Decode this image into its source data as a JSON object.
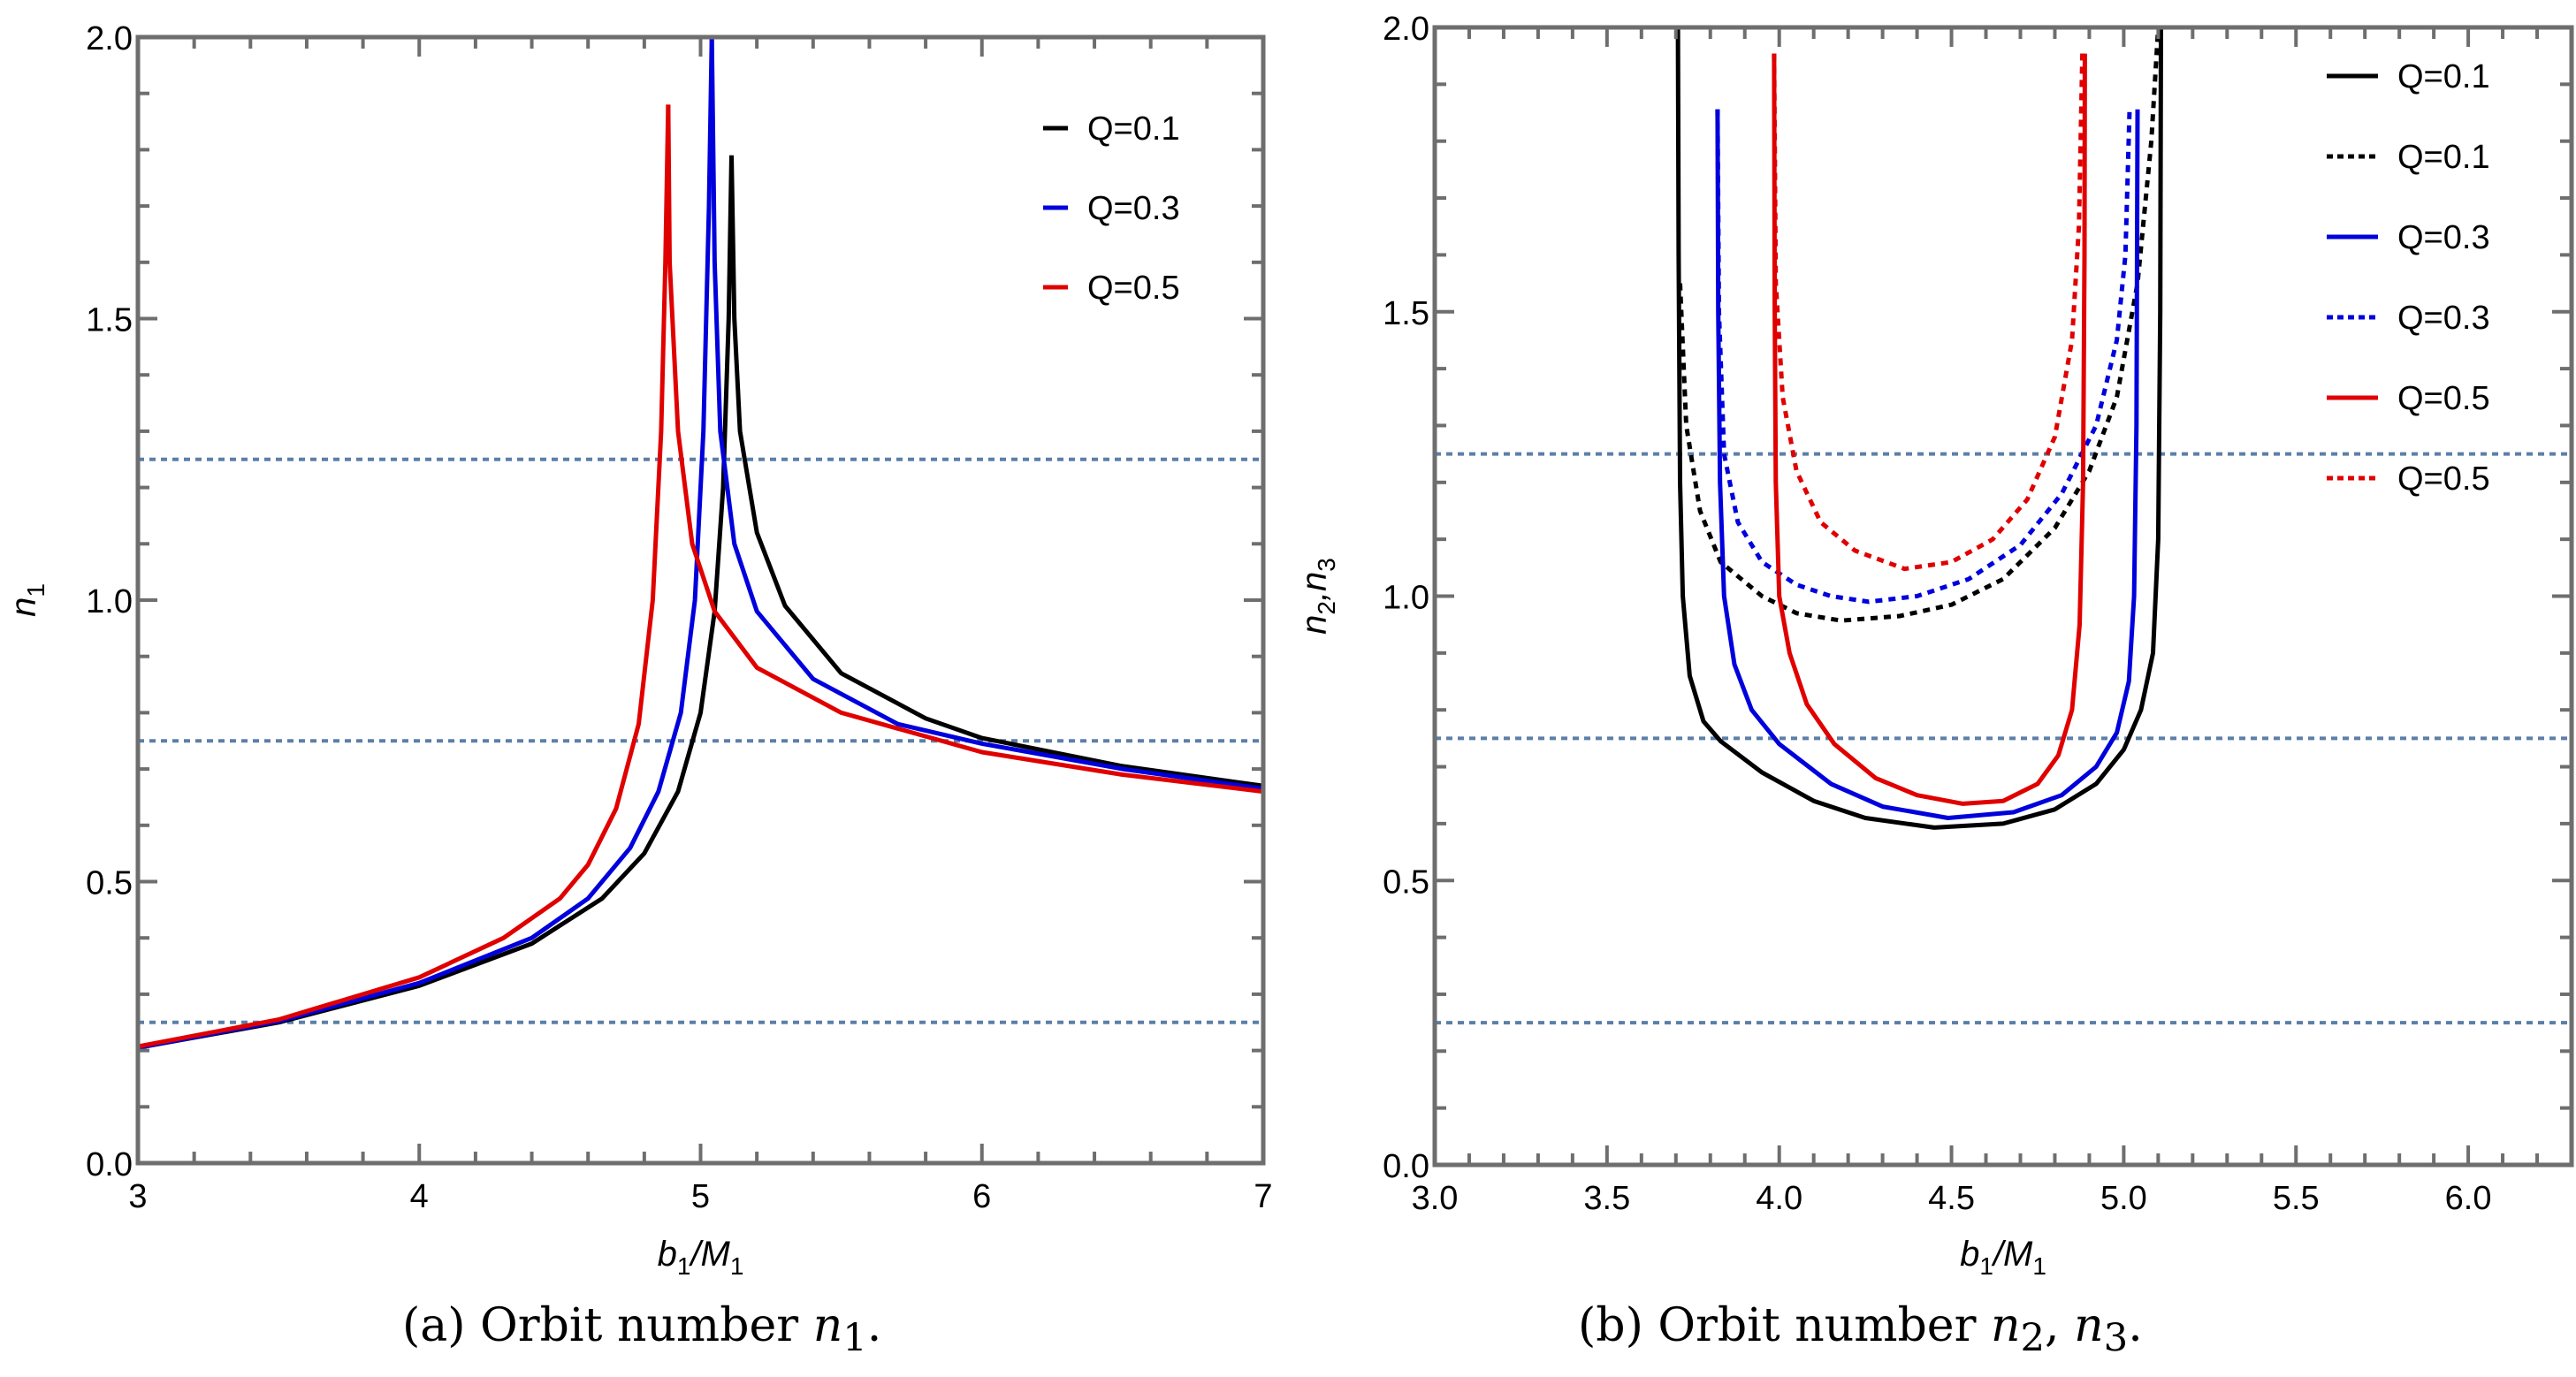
{
  "chart_data": [
    {
      "id": "a",
      "type": "line",
      "caption": "(a) Orbit number n₁.",
      "caption_parts": {
        "prefix": "(a) Orbit number ",
        "var": "n",
        "sub": "1",
        "suffix": "."
      },
      "xlabel": {
        "main": "b",
        "sub1": "1",
        "mid": "/M",
        "sub2": "1"
      },
      "ylabel": {
        "main": "n",
        "sub": "1"
      },
      "xlim": [
        3,
        7
      ],
      "ylim": [
        0,
        2
      ],
      "xticks": [
        3,
        4,
        5,
        6,
        7
      ],
      "xtick_labels": [
        "3",
        "4",
        "5",
        "6",
        "7"
      ],
      "x_minor_step": 0.2,
      "yticks": [
        0,
        0.5,
        1.0,
        1.5,
        2.0
      ],
      "ytick_labels": [
        "0.0",
        "0.5",
        "1.0",
        "1.5",
        "2.0"
      ],
      "y_minor_step": 0.1,
      "grid": false,
      "legend_position": "top-right",
      "reference_lines": [
        0.25,
        0.75,
        1.25
      ],
      "reference_color": "#5b7fa8",
      "series": [
        {
          "name": "Q=0.1",
          "color": "#000000",
          "style": "solid",
          "segments": [
            [
              [
                3,
                0.205
              ],
              [
                3.5,
                0.25
              ],
              [
                4,
                0.315
              ],
              [
                4.4,
                0.39
              ],
              [
                4.65,
                0.47
              ],
              [
                4.8,
                0.55
              ],
              [
                4.92,
                0.66
              ],
              [
                5.0,
                0.8
              ],
              [
                5.05,
                0.98
              ],
              [
                5.08,
                1.2
              ],
              [
                5.1,
                1.5
              ],
              [
                5.11,
                1.79
              ]
            ],
            [
              [
                5.11,
                1.79
              ],
              [
                5.12,
                1.5
              ],
              [
                5.14,
                1.3
              ],
              [
                5.2,
                1.12
              ],
              [
                5.3,
                0.99
              ],
              [
                5.5,
                0.87
              ],
              [
                5.8,
                0.79
              ],
              [
                6,
                0.755
              ],
              [
                6.5,
                0.705
              ],
              [
                7,
                0.67
              ]
            ]
          ]
        },
        {
          "name": "Q=0.3",
          "color": "#0000dd",
          "style": "solid",
          "segments": [
            [
              [
                3,
                0.205
              ],
              [
                3.5,
                0.252
              ],
              [
                4,
                0.32
              ],
              [
                4.4,
                0.4
              ],
              [
                4.6,
                0.47
              ],
              [
                4.75,
                0.56
              ],
              [
                4.85,
                0.66
              ],
              [
                4.93,
                0.8
              ],
              [
                4.98,
                1.0
              ],
              [
                5.01,
                1.3
              ],
              [
                5.03,
                1.7
              ],
              [
                5.04,
                2.0
              ]
            ],
            [
              [
                5.04,
                2.0
              ],
              [
                5.05,
                1.6
              ],
              [
                5.07,
                1.3
              ],
              [
                5.12,
                1.1
              ],
              [
                5.2,
                0.98
              ],
              [
                5.4,
                0.86
              ],
              [
                5.7,
                0.78
              ],
              [
                6,
                0.745
              ],
              [
                6.5,
                0.7
              ],
              [
                7,
                0.665
              ]
            ]
          ]
        },
        {
          "name": "Q=0.5",
          "color": "#e00000",
          "style": "solid",
          "segments": [
            [
              [
                3,
                0.207
              ],
              [
                3.5,
                0.255
              ],
              [
                4,
                0.33
              ],
              [
                4.3,
                0.4
              ],
              [
                4.5,
                0.47
              ],
              [
                4.6,
                0.53
              ],
              [
                4.7,
                0.63
              ],
              [
                4.78,
                0.78
              ],
              [
                4.83,
                1.0
              ],
              [
                4.86,
                1.3
              ],
              [
                4.875,
                1.6
              ],
              [
                4.885,
                1.88
              ]
            ],
            [
              [
                4.885,
                1.88
              ],
              [
                4.89,
                1.6
              ],
              [
                4.92,
                1.3
              ],
              [
                4.97,
                1.1
              ],
              [
                5.05,
                0.98
              ],
              [
                5.2,
                0.88
              ],
              [
                5.5,
                0.8
              ],
              [
                6,
                0.73
              ],
              [
                6.5,
                0.69
              ],
              [
                7,
                0.66
              ]
            ]
          ]
        }
      ]
    },
    {
      "id": "b",
      "type": "line",
      "caption": "(b) Orbit number n₂, n₃.",
      "caption_parts": {
        "prefix": "(b) Orbit number ",
        "var": "n",
        "sub": "2",
        "mid": ", ",
        "var2": "n",
        "sub2": "3",
        "suffix": "."
      },
      "xlabel": {
        "main": "b",
        "sub1": "1",
        "mid": "/M",
        "sub2": "1"
      },
      "ylabel": {
        "main": "n",
        "sub": "2",
        "mid": ",n",
        "sub2": "3"
      },
      "xlim": [
        3.0,
        6.3
      ],
      "ylim": [
        0,
        2
      ],
      "xticks": [
        3.0,
        3.5,
        4.0,
        4.5,
        5.0,
        5.5,
        6.0
      ],
      "xtick_labels": [
        "3.0",
        "3.5",
        "4.0",
        "4.5",
        "5.0",
        "5.5",
        "6.0"
      ],
      "x_minor_step": 0.1,
      "yticks": [
        0,
        0.5,
        1.0,
        1.5,
        2.0
      ],
      "ytick_labels": [
        "0.0",
        "0.5",
        "1.0",
        "1.5",
        "2.0"
      ],
      "y_minor_step": 0.1,
      "grid": false,
      "legend_position": "top-right",
      "reference_lines": [
        0.25,
        0.75,
        1.25
      ],
      "reference_color": "#5b7fa8",
      "series": [
        {
          "name": "Q=0.1",
          "color": "#000000",
          "style": "solid",
          "segments": [
            [
              [
                3.706,
                2.0
              ],
              [
                3.708,
                1.6
              ],
              [
                3.712,
                1.2
              ],
              [
                3.72,
                1.0
              ],
              [
                3.74,
                0.86
              ],
              [
                3.78,
                0.78
              ],
              [
                3.83,
                0.745
              ],
              [
                3.95,
                0.69
              ],
              [
                4.1,
                0.64
              ],
              [
                4.25,
                0.61
              ],
              [
                4.45,
                0.593
              ],
              [
                4.65,
                0.6
              ],
              [
                4.8,
                0.625
              ],
              [
                4.92,
                0.67
              ],
              [
                5.0,
                0.73
              ],
              [
                5.05,
                0.8
              ],
              [
                5.085,
                0.9
              ],
              [
                5.1,
                1.1
              ],
              [
                5.106,
                1.5
              ],
              [
                5.108,
                2.0
              ]
            ]
          ]
        },
        {
          "name": "Q=0.1",
          "color": "#000000",
          "style": "dotted",
          "segments": [
            [
              [
                3.712,
                1.55
              ],
              [
                3.73,
                1.3
              ],
              [
                3.77,
                1.15
              ],
              [
                3.83,
                1.06
              ],
              [
                3.95,
                1.0
              ],
              [
                4.05,
                0.97
              ],
              [
                4.18,
                0.957
              ],
              [
                4.35,
                0.965
              ],
              [
                4.5,
                0.985
              ],
              [
                4.65,
                1.03
              ],
              [
                4.8,
                1.12
              ],
              [
                4.9,
                1.22
              ],
              [
                4.98,
                1.35
              ],
              [
                5.04,
                1.55
              ],
              [
                5.08,
                1.8
              ],
              [
                5.1,
                2.0
              ]
            ]
          ]
        },
        {
          "name": "Q=0.3",
          "color": "#0000dd",
          "style": "solid",
          "segments": [
            [
              [
                3.821,
                1.856
              ],
              [
                3.823,
                1.5
              ],
              [
                3.828,
                1.2
              ],
              [
                3.84,
                1.0
              ],
              [
                3.87,
                0.88
              ],
              [
                3.92,
                0.8
              ],
              [
                4.0,
                0.74
              ],
              [
                4.15,
                0.67
              ],
              [
                4.3,
                0.63
              ],
              [
                4.49,
                0.61
              ],
              [
                4.68,
                0.62
              ],
              [
                4.82,
                0.65
              ],
              [
                4.92,
                0.7
              ],
              [
                4.98,
                0.76
              ],
              [
                5.015,
                0.85
              ],
              [
                5.03,
                1.0
              ],
              [
                5.037,
                1.3
              ],
              [
                5.04,
                1.856
              ]
            ]
          ]
        },
        {
          "name": "Q=0.3",
          "color": "#0000dd",
          "style": "dotted",
          "segments": [
            [
              [
                3.821,
                1.856
              ],
              [
                3.825,
                1.5
              ],
              [
                3.84,
                1.25
              ],
              [
                3.88,
                1.13
              ],
              [
                3.95,
                1.06
              ],
              [
                4.05,
                1.02
              ],
              [
                4.15,
                1.0
              ],
              [
                4.26,
                0.99
              ],
              [
                4.4,
                1.0
              ],
              [
                4.55,
                1.03
              ],
              [
                4.7,
                1.09
              ],
              [
                4.82,
                1.18
              ],
              [
                4.92,
                1.3
              ],
              [
                4.98,
                1.45
              ],
              [
                5.005,
                1.6
              ],
              [
                5.017,
                1.856
              ]
            ]
          ]
        },
        {
          "name": "Q=0.5",
          "color": "#e00000",
          "style": "solid",
          "segments": [
            [
              [
                3.985,
                1.954
              ],
              [
                3.987,
                1.5
              ],
              [
                3.99,
                1.2
              ],
              [
                4.0,
                1.0
              ],
              [
                4.03,
                0.9
              ],
              [
                4.08,
                0.81
              ],
              [
                4.16,
                0.74
              ],
              [
                4.28,
                0.68
              ],
              [
                4.4,
                0.65
              ],
              [
                4.533,
                0.635
              ],
              [
                4.65,
                0.64
              ],
              [
                4.75,
                0.67
              ],
              [
                4.81,
                0.72
              ],
              [
                4.85,
                0.8
              ],
              [
                4.872,
                0.95
              ],
              [
                4.882,
                1.2
              ],
              [
                4.886,
                1.6
              ],
              [
                4.887,
                1.954
              ]
            ]
          ]
        },
        {
          "name": "Q=0.5",
          "color": "#e00000",
          "style": "dotted",
          "segments": [
            [
              [
                3.985,
                1.954
              ],
              [
                3.99,
                1.55
              ],
              [
                4.01,
                1.35
              ],
              [
                4.05,
                1.22
              ],
              [
                4.12,
                1.13
              ],
              [
                4.22,
                1.08
              ],
              [
                4.364,
                1.048
              ],
              [
                4.5,
                1.06
              ],
              [
                4.62,
                1.1
              ],
              [
                4.72,
                1.17
              ],
              [
                4.8,
                1.28
              ],
              [
                4.85,
                1.45
              ],
              [
                4.87,
                1.65
              ],
              [
                4.88,
                1.954
              ]
            ]
          ]
        }
      ]
    }
  ]
}
